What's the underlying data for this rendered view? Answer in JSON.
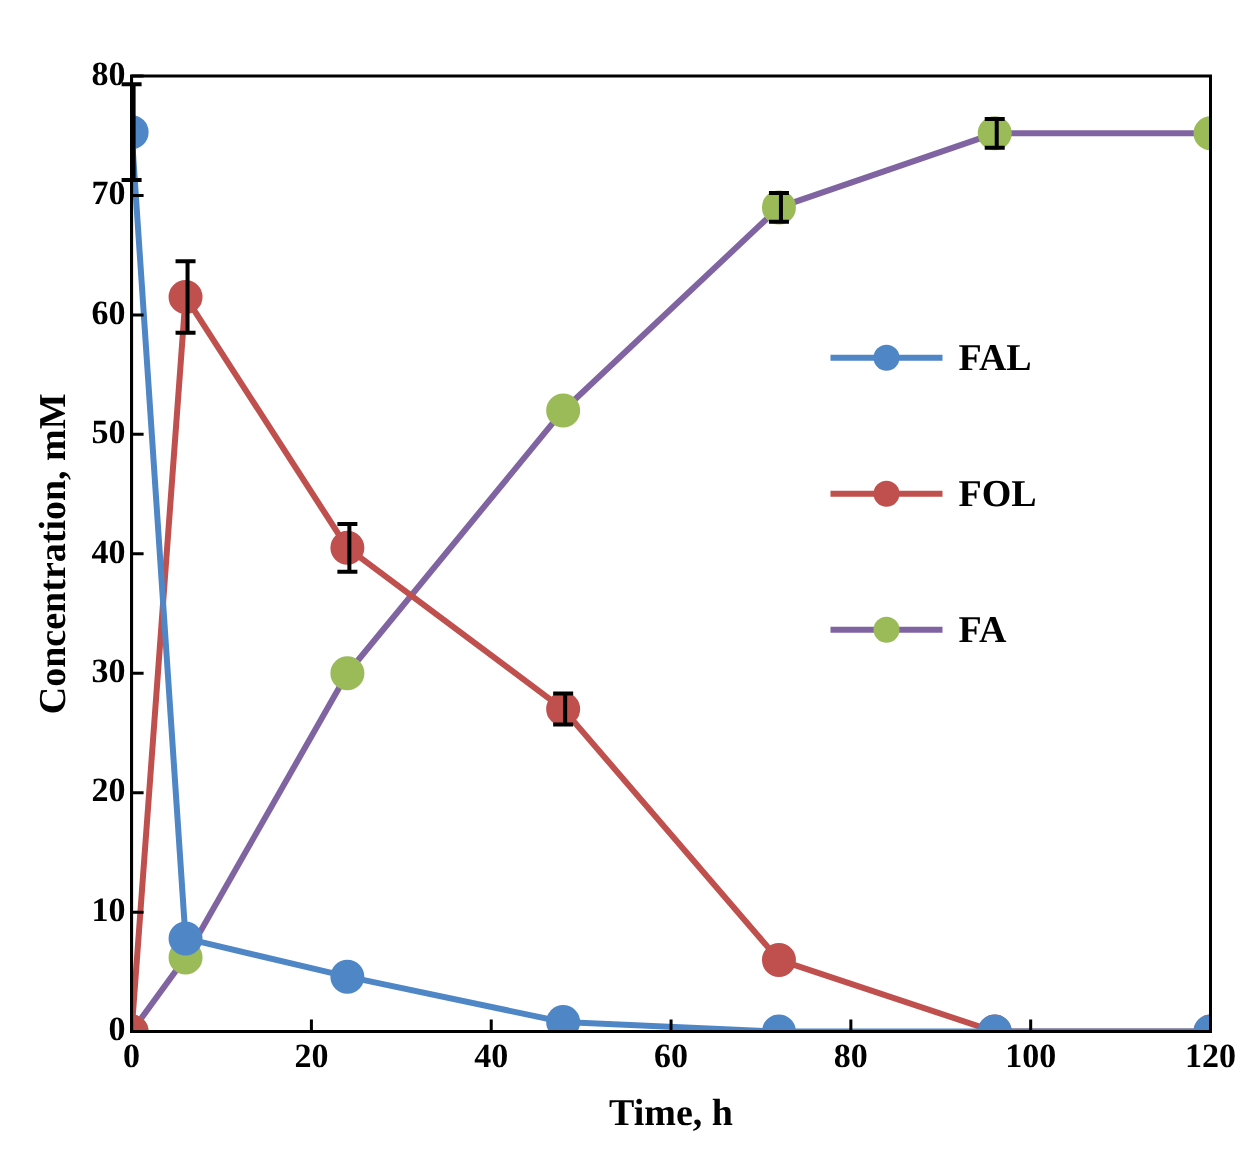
{
  "chart_data": {
    "type": "line",
    "xlabel": "Time, h",
    "ylabel": "Concentration, mM",
    "x": [
      0,
      6,
      24,
      48,
      72,
      96,
      120
    ],
    "series": [
      {
        "name": "FAL",
        "color": "#4f86c6",
        "values": [
          75.3,
          7.8,
          4.6,
          0.8,
          0,
          0,
          0
        ],
        "errors": [
          4,
          null,
          null,
          null,
          null,
          null,
          null
        ]
      },
      {
        "name": "FOL",
        "color": "#c0504d",
        "values": [
          0,
          61.5,
          40.5,
          27,
          6,
          0,
          0
        ],
        "errors": [
          null,
          3,
          2,
          1.3,
          null,
          null,
          null
        ]
      },
      {
        "name": "FA",
        "color": "#8064a2",
        "colors": [
          "#9bbb59",
          "#9bbb59",
          "#9bbb59",
          "#9bbb59",
          "#9bbb59",
          "#9bbb59",
          "#9bbb59"
        ],
        "values": [
          0,
          6.2,
          30,
          52,
          69,
          75.2,
          75.2
        ],
        "errors": [
          null,
          null,
          null,
          null,
          1.2,
          1.2,
          null
        ]
      }
    ],
    "xlim": [
      0,
      120
    ],
    "xticks": [
      0,
      20,
      40,
      60,
      80,
      100,
      120
    ],
    "ylim": [
      0,
      80
    ],
    "yticks": [
      0,
      10,
      20,
      30,
      40,
      50,
      60,
      70,
      80
    ],
    "grid": false,
    "legend": "right",
    "marker": "circle",
    "line_style": "solid"
  }
}
